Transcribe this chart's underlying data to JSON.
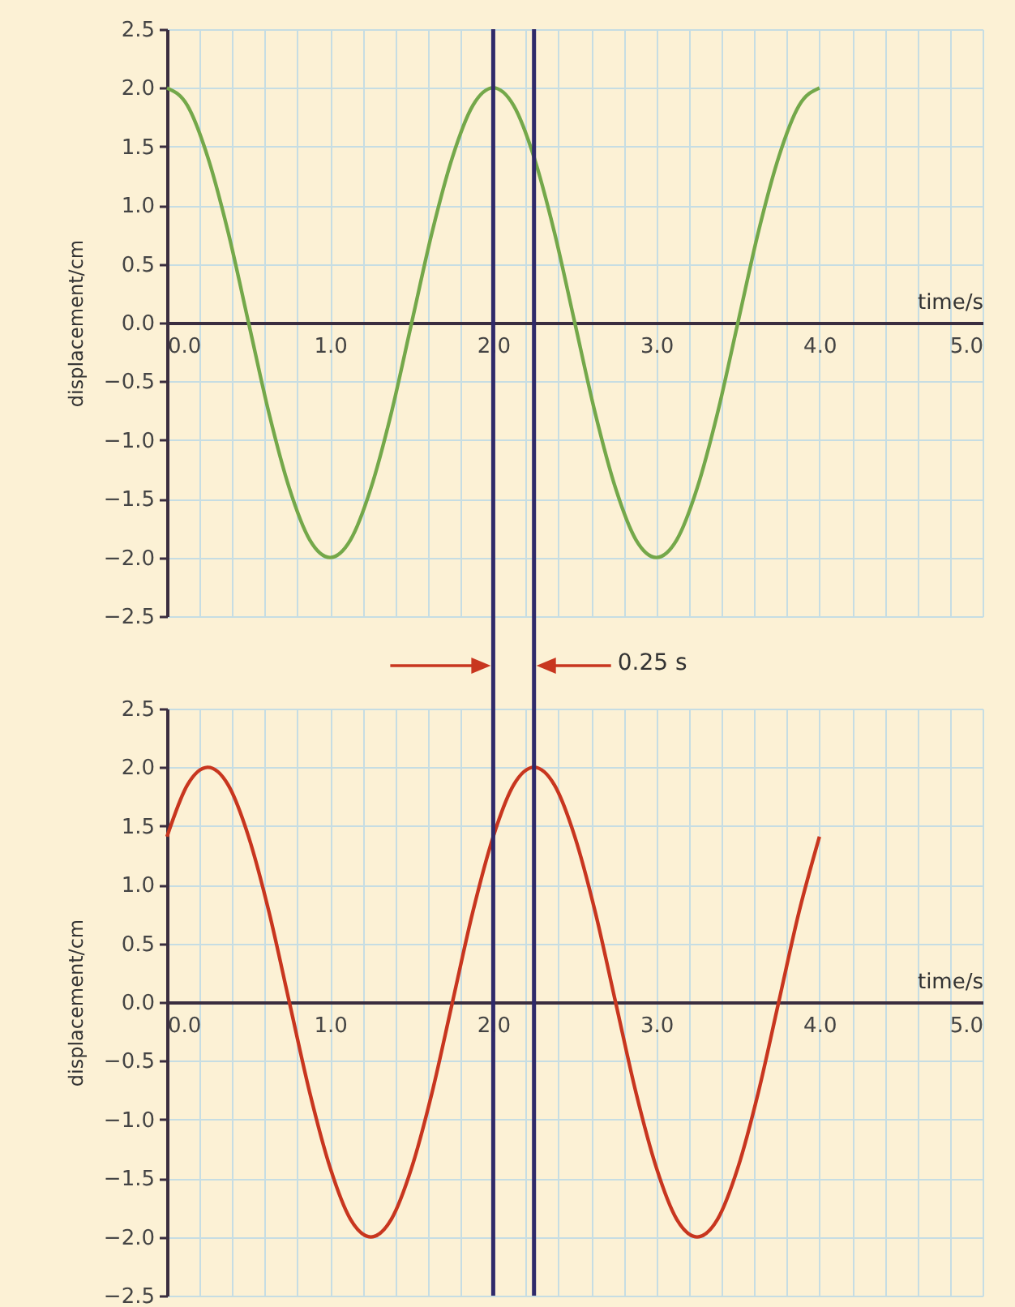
{
  "chart_data": [
    {
      "type": "line",
      "xlabel": "time/s",
      "ylabel": "displacement/cm",
      "x": [
        0,
        0.125,
        0.25,
        0.375,
        0.5,
        0.625,
        0.75,
        0.875,
        1,
        1.125,
        1.25,
        1.375,
        1.5,
        1.625,
        1.75,
        1.875,
        2,
        2.125,
        2.25,
        2.375,
        2.5,
        2.625,
        2.75,
        2.875,
        3,
        3.125,
        3.25,
        3.375,
        3.5,
        3.625,
        3.75,
        3.875,
        4
      ],
      "series": [
        {
          "color": "#74a84a",
          "values": [
            2,
            1.85,
            1.41,
            0.77,
            0,
            -0.77,
            -1.41,
            -1.85,
            -2,
            -1.85,
            -1.41,
            -0.77,
            0,
            0.77,
            1.41,
            1.85,
            2,
            1.85,
            1.41,
            0.77,
            0,
            -0.77,
            -1.41,
            -1.85,
            -2,
            -1.85,
            -1.41,
            -0.77,
            0,
            0.77,
            1.41,
            1.85,
            2
          ]
        }
      ],
      "xlim": [
        0,
        5
      ],
      "ylim": [
        -2.5,
        2.5
      ],
      "xticks": [
        {
          "value": 0,
          "label": "0.0"
        },
        {
          "value": 0.2,
          "label": null
        },
        {
          "value": 0.4,
          "label": null
        },
        {
          "value": 0.6,
          "label": null
        },
        {
          "value": 0.8,
          "label": null
        },
        {
          "value": 1,
          "label": "1.0"
        },
        {
          "value": 1.2,
          "label": null
        },
        {
          "value": 1.4,
          "label": null
        },
        {
          "value": 1.6,
          "label": null
        },
        {
          "value": 1.8,
          "label": null
        },
        {
          "value": 2,
          "label": "2.0"
        },
        {
          "value": 2.2,
          "label": null
        },
        {
          "value": 2.4,
          "label": null
        },
        {
          "value": 2.6,
          "label": null
        },
        {
          "value": 2.8,
          "label": null
        },
        {
          "value": 3,
          "label": "3.0"
        },
        {
          "value": 3.2,
          "label": null
        },
        {
          "value": 3.4,
          "label": null
        },
        {
          "value": 3.6,
          "label": null
        },
        {
          "value": 3.8,
          "label": null
        },
        {
          "value": 4,
          "label": "4.0"
        },
        {
          "value": 4.2,
          "label": null
        },
        {
          "value": 4.4,
          "label": null
        },
        {
          "value": 4.6,
          "label": null
        },
        {
          "value": 4.8,
          "label": null
        },
        {
          "value": 5,
          "label": "5.0"
        }
      ],
      "yticks": [
        {
          "value": -2.5,
          "label": "−2.5"
        },
        {
          "value": -2,
          "label": "−2.0"
        },
        {
          "value": -1.5,
          "label": "−1.5"
        },
        {
          "value": -1,
          "label": "−1.0"
        },
        {
          "value": -0.5,
          "label": "−0.5"
        },
        {
          "value": 0,
          "label": "0.0"
        },
        {
          "value": 0.5,
          "label": "0.5"
        },
        {
          "value": 1,
          "label": "1.0"
        },
        {
          "value": 1.5,
          "label": "1.5"
        },
        {
          "value": 2,
          "label": "2.0"
        },
        {
          "value": 2.5,
          "label": "2.5"
        }
      ],
      "grid": true,
      "ref_lines": [
        {
          "axis": "x",
          "value": 2,
          "color": "#2f2a6a"
        },
        {
          "axis": "x",
          "value": 2.25,
          "color": "#2f2a6a"
        }
      ],
      "annotations": [
        "0.25 s"
      ]
    },
    {
      "type": "line",
      "xlabel": "time/s",
      "ylabel": "displacement/cm",
      "x": [
        0,
        0.125,
        0.25,
        0.375,
        0.5,
        0.625,
        0.75,
        0.875,
        1,
        1.125,
        1.25,
        1.375,
        1.5,
        1.625,
        1.75,
        1.875,
        2,
        2.125,
        2.25,
        2.375,
        2.5,
        2.625,
        2.75,
        2.875,
        3,
        3.125,
        3.25,
        3.375,
        3.5,
        3.625,
        3.75,
        3.875,
        4
      ],
      "series": [
        {
          "color": "#c8361f",
          "values": [
            1.41,
            1.85,
            2,
            1.85,
            1.41,
            0.77,
            0,
            -0.77,
            -1.41,
            -1.85,
            -2,
            -1.85,
            -1.41,
            -0.77,
            0,
            0.77,
            1.41,
            1.85,
            2,
            1.85,
            1.41,
            0.77,
            0,
            -0.77,
            -1.41,
            -1.85,
            -2,
            -1.85,
            -1.41,
            -0.77,
            0,
            0.77,
            1.41
          ]
        }
      ],
      "xlim": [
        0,
        5
      ],
      "ylim": [
        -2.5,
        2.5
      ],
      "xticks": [
        {
          "value": 0,
          "label": "0.0"
        },
        {
          "value": 0.2,
          "label": null
        },
        {
          "value": 0.4,
          "label": null
        },
        {
          "value": 0.6,
          "label": null
        },
        {
          "value": 0.8,
          "label": null
        },
        {
          "value": 1,
          "label": "1.0"
        },
        {
          "value": 1.2,
          "label": null
        },
        {
          "value": 1.4,
          "label": null
        },
        {
          "value": 1.6,
          "label": null
        },
        {
          "value": 1.8,
          "label": null
        },
        {
          "value": 2,
          "label": "2.0"
        },
        {
          "value": 2.2,
          "label": null
        },
        {
          "value": 2.4,
          "label": null
        },
        {
          "value": 2.6,
          "label": null
        },
        {
          "value": 2.8,
          "label": null
        },
        {
          "value": 3,
          "label": "3.0"
        },
        {
          "value": 3.2,
          "label": null
        },
        {
          "value": 3.4,
          "label": null
        },
        {
          "value": 3.6,
          "label": null
        },
        {
          "value": 3.8,
          "label": null
        },
        {
          "value": 4,
          "label": "4.0"
        },
        {
          "value": 4.2,
          "label": null
        },
        {
          "value": 4.4,
          "label": null
        },
        {
          "value": 4.6,
          "label": null
        },
        {
          "value": 4.8,
          "label": null
        },
        {
          "value": 5,
          "label": "5.0"
        }
      ],
      "yticks": [
        {
          "value": -2.5,
          "label": "−2.5"
        },
        {
          "value": -2,
          "label": "−2.0"
        },
        {
          "value": -1.5,
          "label": "−1.5"
        },
        {
          "value": -1,
          "label": "−1.0"
        },
        {
          "value": -0.5,
          "label": "−0.5"
        },
        {
          "value": 0,
          "label": "0.0"
        },
        {
          "value": 0.5,
          "label": "0.5"
        },
        {
          "value": 1,
          "label": "1.0"
        },
        {
          "value": 1.5,
          "label": "1.5"
        },
        {
          "value": 2,
          "label": "2.0"
        },
        {
          "value": 2.5,
          "label": "2.5"
        }
      ],
      "grid": true,
      "ref_lines": [
        {
          "axis": "x",
          "value": 2,
          "color": "#2f2a6a"
        },
        {
          "axis": "x",
          "value": 2.25,
          "color": "#2f2a6a"
        }
      ]
    }
  ]
}
